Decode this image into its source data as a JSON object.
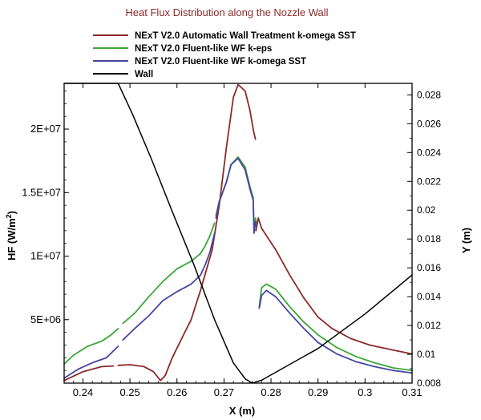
{
  "chart_data": {
    "type": "line",
    "title": "Heat Flux Distribution along the Nozzle Wall",
    "xlabel": "X (m)",
    "ylabel_left_main": "HF (W/m",
    "ylabel_left_sup": "2",
    "ylabel_left_close": ")",
    "ylabel_right": "Y (m)",
    "xlim": [
      0.236,
      0.31
    ],
    "ylim_left": [
      0,
      23600000
    ],
    "ylim_right": [
      0.008,
      0.0288
    ],
    "x_ticks": [
      0.24,
      0.25,
      0.26,
      0.27,
      0.28,
      0.29,
      0.3,
      0.31
    ],
    "x_tick_labels": [
      "0.24",
      "0.25",
      "0.26",
      "0.27",
      "0.28",
      "0.29",
      "0.3",
      "0.31"
    ],
    "y_left_ticks": [
      5000000,
      10000000,
      15000000,
      20000000
    ],
    "y_left_tick_labels": [
      "5E+06",
      "1E+07",
      "1.5E+07",
      "2E+07"
    ],
    "y_right_ticks": [
      0.008,
      0.01,
      0.012,
      0.014,
      0.016,
      0.018,
      0.02,
      0.022,
      0.024,
      0.026,
      0.028
    ],
    "y_right_tick_labels": [
      "0.008",
      "0.01",
      "0.012",
      "0.014",
      "0.016",
      "0.018",
      "0.02",
      "0.022",
      "0.024",
      "0.026",
      "0.028"
    ],
    "legend_position": "top",
    "grid": false,
    "series": [
      {
        "name": "NExT V2.0 Automatic Wall Treatment k-omega SST",
        "color": "#8b2a2a",
        "axis": "left",
        "segments": [
          [
            [
              0.236,
              200000
            ],
            [
              0.24,
              900000
            ],
            [
              0.244,
              1300000
            ],
            [
              0.2465,
              1350000
            ]
          ],
          [
            [
              0.2475,
              1400000
            ],
            [
              0.25,
              1450000
            ],
            [
              0.253,
              1300000
            ],
            [
              0.255,
              900000
            ],
            [
              0.2565,
              200000
            ],
            [
              0.2575,
              600000
            ],
            [
              0.259,
              2000000
            ],
            [
              0.261,
              3500000
            ],
            [
              0.263,
              5000000
            ],
            [
              0.265,
              7300000
            ],
            [
              0.2675,
              10500000
            ],
            [
              0.269,
              14000000
            ],
            [
              0.2705,
              18500000
            ],
            [
              0.272,
              22500000
            ],
            [
              0.273,
              23500000
            ],
            [
              0.2745,
              23000000
            ],
            [
              0.2755,
              21500000
            ],
            [
              0.2763,
              19800000
            ],
            [
              0.2767,
              19200000
            ]
          ],
          [
            [
              0.2768,
              12000000
            ],
            [
              0.2773,
              13000000
            ],
            [
              0.278,
              12200000
            ],
            [
              0.281,
              10500000
            ],
            [
              0.284,
              8500000
            ],
            [
              0.287,
              6700000
            ],
            [
              0.29,
              5200000
            ],
            [
              0.293,
              4300000
            ],
            [
              0.297,
              3500000
            ],
            [
              0.301,
              3000000
            ],
            [
              0.306,
              2600000
            ],
            [
              0.31,
              2300000
            ]
          ]
        ]
      },
      {
        "name": "NExT V2.0 Fluent-like WF k-eps",
        "color": "#3aa836",
        "axis": "left",
        "segments": [
          [
            [
              0.236,
              1500000
            ],
            [
              0.238,
              2200000
            ],
            [
              0.241,
              2900000
            ],
            [
              0.244,
              3300000
            ],
            [
              0.246,
              3800000
            ],
            [
              0.2475,
              4300000
            ]
          ],
          [
            [
              0.2485,
              4700000
            ],
            [
              0.251,
              5500000
            ],
            [
              0.254,
              6800000
            ],
            [
              0.257,
              8000000
            ],
            [
              0.26,
              9000000
            ],
            [
              0.263,
              9600000
            ],
            [
              0.265,
              10200000
            ],
            [
              0.266,
              10800000
            ],
            [
              0.267,
              11600000
            ],
            [
              0.268,
              12600000
            ]
          ],
          [
            [
              0.2683,
              13200000
            ],
            [
              0.269,
              14300000
            ],
            [
              0.2705,
              15800000
            ],
            [
              0.2715,
              17200000
            ],
            [
              0.273,
              17800000
            ],
            [
              0.2745,
              17000000
            ],
            [
              0.2755,
              15500000
            ],
            [
              0.2762,
              14600000
            ],
            [
              0.2764,
              12000000
            ],
            [
              0.2767,
              13000000
            ],
            [
              0.2769,
              12500000
            ]
          ],
          [
            [
              0.2775,
              6000000
            ],
            [
              0.278,
              7500000
            ],
            [
              0.279,
              7800000
            ],
            [
              0.281,
              7400000
            ],
            [
              0.284,
              6000000
            ],
            [
              0.287,
              4800000
            ],
            [
              0.29,
              3800000
            ],
            [
              0.294,
              2800000
            ],
            [
              0.298,
              2100000
            ],
            [
              0.302,
              1600000
            ],
            [
              0.306,
              1200000
            ],
            [
              0.31,
              1000000
            ]
          ]
        ]
      },
      {
        "name": "NExT V2.0 Fluent-like WF k-omega SST",
        "color": "#4545a0",
        "axis": "left",
        "segments": [
          [
            [
              0.236,
              400000
            ],
            [
              0.239,
              1100000
            ],
            [
              0.242,
              1600000
            ],
            [
              0.245,
              2000000
            ],
            [
              0.2475,
              2900000
            ]
          ],
          [
            [
              0.2485,
              3400000
            ],
            [
              0.251,
              4300000
            ],
            [
              0.254,
              5300000
            ],
            [
              0.257,
              6500000
            ],
            [
              0.26,
              7200000
            ],
            [
              0.263,
              7800000
            ],
            [
              0.265,
              8500000
            ],
            [
              0.266,
              9300000
            ],
            [
              0.267,
              10300000
            ],
            [
              0.268,
              11800000
            ]
          ],
          [
            [
              0.2683,
              13000000
            ],
            [
              0.269,
              14300000
            ],
            [
              0.2705,
              15800000
            ],
            [
              0.2715,
              17200000
            ],
            [
              0.273,
              17700000
            ],
            [
              0.2745,
              16800000
            ],
            [
              0.2755,
              15300000
            ],
            [
              0.2762,
              14400000
            ],
            [
              0.2764,
              11800000
            ],
            [
              0.2767,
              12700000
            ],
            [
              0.2769,
              12300000
            ]
          ],
          [
            [
              0.2775,
              5900000
            ],
            [
              0.278,
              6900000
            ],
            [
              0.279,
              7300000
            ],
            [
              0.281,
              6800000
            ],
            [
              0.284,
              5500000
            ],
            [
              0.287,
              4300000
            ],
            [
              0.29,
              3200000
            ],
            [
              0.294,
              2300000
            ],
            [
              0.298,
              1700000
            ],
            [
              0.302,
              1300000
            ],
            [
              0.306,
              1000000
            ],
            [
              0.31,
              800000
            ]
          ]
        ]
      },
      {
        "name": "Wall",
        "color": "#000000",
        "axis": "right",
        "segments": [
          [
            [
              0.236,
              0.0288
            ],
            [
              0.2475,
              0.0288
            ],
            [
              0.2505,
              0.0267
            ],
            [
              0.2545,
              0.0236
            ],
            [
              0.259,
              0.0199
            ],
            [
              0.2635,
              0.0163
            ],
            [
              0.268,
              0.0124
            ],
            [
              0.272,
              0.0094
            ],
            [
              0.2745,
              0.0083
            ],
            [
              0.276,
              0.008
            ],
            [
              0.278,
              0.0082
            ],
            [
              0.29,
              0.0104
            ],
            [
              0.3,
              0.0128
            ],
            [
              0.31,
              0.0155
            ]
          ]
        ]
      }
    ]
  }
}
